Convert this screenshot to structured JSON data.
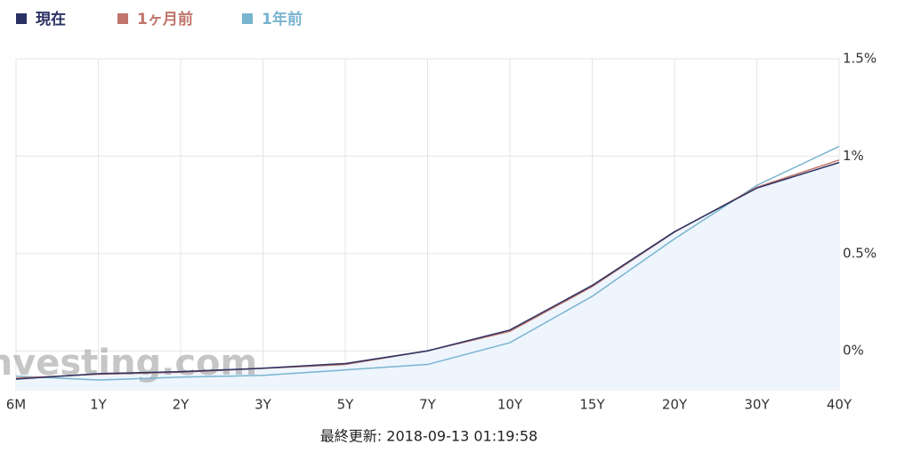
{
  "chart_data": {
    "type": "line",
    "categories": [
      "6M",
      "1Y",
      "2Y",
      "3Y",
      "5Y",
      "7Y",
      "10Y",
      "15Y",
      "20Y",
      "30Y",
      "40Y"
    ],
    "series": [
      {
        "name": "現在",
        "color": "#2b3163",
        "values": [
          -0.145,
          -0.117,
          -0.107,
          -0.089,
          -0.065,
          0.0,
          0.107,
          0.336,
          0.612,
          0.836,
          0.967
        ]
      },
      {
        "name": "1ヶ月前",
        "color": "#c0756b",
        "values": [
          -0.14,
          -0.12,
          -0.11,
          -0.09,
          -0.07,
          0.0,
          0.1,
          0.33,
          0.61,
          0.84,
          0.98
        ]
      },
      {
        "name": "1年前",
        "color": "#79b4d0",
        "values": [
          -0.13,
          -0.15,
          -0.135,
          -0.126,
          -0.098,
          -0.07,
          0.042,
          0.28,
          0.575,
          0.85,
          1.05
        ]
      }
    ],
    "area_fill": "#eef5fc",
    "ylim": [
      -0.2,
      1.5
    ],
    "yticks": [
      {
        "value": 0,
        "label": "0%"
      },
      {
        "value": 0.5,
        "label": "0.5%"
      },
      {
        "value": 1,
        "label": "1%"
      },
      {
        "value": 1.5,
        "label": "1.5%"
      }
    ],
    "grid": true,
    "watermark": "Investing.com",
    "footer": "最終更新: 2018-09-13 01:19:58"
  }
}
